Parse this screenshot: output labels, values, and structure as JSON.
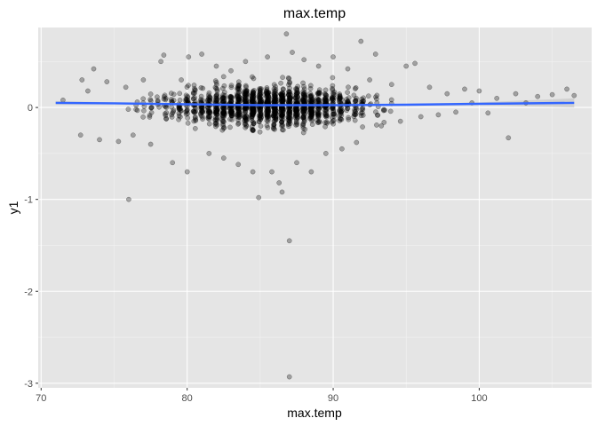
{
  "chart_data": {
    "type": "scatter",
    "title": "max.temp",
    "xlabel": "max.temp",
    "ylabel": "y1",
    "xlim": [
      69.8,
      107.7
    ],
    "ylim": [
      -3.05,
      0.87
    ],
    "x_ticks": [
      70,
      80,
      90,
      100
    ],
    "y_ticks": [
      -3,
      -2,
      -1,
      0
    ],
    "x_tick_labels": [
      "70",
      "80",
      "90",
      "100"
    ],
    "y_tick_labels": [
      "-3",
      "-2",
      "-1",
      "0"
    ],
    "grid": true,
    "legend": "none",
    "colors": {
      "panel": "#e5e5e5",
      "grid_major": "#ffffff",
      "grid_minor": "#f2f2f2",
      "points": "#000000",
      "smooth_line": "#3366ff",
      "confidence_band": "#bfbfbf"
    },
    "trend_line": {
      "x": [
        71,
        75,
        80,
        85,
        90,
        95,
        100,
        106.5
      ],
      "y": [
        0.05,
        0.045,
        0.035,
        0.025,
        0.025,
        0.03,
        0.04,
        0.05
      ],
      "se_lower": [
        0.03,
        0.035,
        0.03,
        0.02,
        0.02,
        0.02,
        0.025,
        0.0
      ],
      "se_upper": [
        0.07,
        0.055,
        0.04,
        0.03,
        0.03,
        0.04,
        0.055,
        0.1
      ]
    },
    "points": [
      {
        "x": 71.5,
        "y": 0.08
      },
      {
        "x": 72.8,
        "y": 0.3
      },
      {
        "x": 72.7,
        "y": -0.3
      },
      {
        "x": 73.2,
        "y": 0.18
      },
      {
        "x": 73.6,
        "y": 0.42
      },
      {
        "x": 74.0,
        "y": -0.35
      },
      {
        "x": 74.5,
        "y": 0.28
      },
      {
        "x": 75.3,
        "y": -0.37
      },
      {
        "x": 75.8,
        "y": 0.22
      },
      {
        "x": 76.0,
        "y": -1.0
      },
      {
        "x": 76.3,
        "y": -0.3
      },
      {
        "x": 77.0,
        "y": 0.3
      },
      {
        "x": 77.5,
        "y": -0.4
      },
      {
        "x": 78.2,
        "y": 0.5
      },
      {
        "x": 78.4,
        "y": 0.57
      },
      {
        "x": 79.0,
        "y": -0.6
      },
      {
        "x": 79.6,
        "y": 0.3
      },
      {
        "x": 80.0,
        "y": -0.7
      },
      {
        "x": 80.1,
        "y": 0.55
      },
      {
        "x": 81.0,
        "y": 0.58
      },
      {
        "x": 81.5,
        "y": -0.5
      },
      {
        "x": 82.0,
        "y": 0.45
      },
      {
        "x": 82.5,
        "y": -0.55
      },
      {
        "x": 83.0,
        "y": 0.4
      },
      {
        "x": 83.5,
        "y": -0.62
      },
      {
        "x": 84.0,
        "y": 0.5
      },
      {
        "x": 84.5,
        "y": -0.7
      },
      {
        "x": 84.9,
        "y": -0.98
      },
      {
        "x": 85.5,
        "y": 0.55
      },
      {
        "x": 85.8,
        "y": -0.7
      },
      {
        "x": 86.3,
        "y": -0.82
      },
      {
        "x": 86.5,
        "y": -0.92
      },
      {
        "x": 86.8,
        "y": 0.8
      },
      {
        "x": 87.0,
        "y": -1.45
      },
      {
        "x": 87.0,
        "y": -2.93
      },
      {
        "x": 87.2,
        "y": 0.6
      },
      {
        "x": 87.5,
        "y": -0.6
      },
      {
        "x": 88.0,
        "y": 0.52
      },
      {
        "x": 88.5,
        "y": -0.7
      },
      {
        "x": 89.0,
        "y": 0.45
      },
      {
        "x": 89.5,
        "y": -0.5
      },
      {
        "x": 90.0,
        "y": 0.55
      },
      {
        "x": 90.6,
        "y": -0.45
      },
      {
        "x": 91.0,
        "y": 0.42
      },
      {
        "x": 91.6,
        "y": -0.38
      },
      {
        "x": 91.9,
        "y": 0.72
      },
      {
        "x": 92.5,
        "y": 0.3
      },
      {
        "x": 92.9,
        "y": 0.58
      },
      {
        "x": 93.3,
        "y": -0.2
      },
      {
        "x": 94.0,
        "y": 0.25
      },
      {
        "x": 94.6,
        "y": -0.15
      },
      {
        "x": 95.0,
        "y": 0.45
      },
      {
        "x": 95.6,
        "y": 0.48
      },
      {
        "x": 96.0,
        "y": -0.1
      },
      {
        "x": 96.6,
        "y": 0.22
      },
      {
        "x": 97.2,
        "y": -0.08
      },
      {
        "x": 97.8,
        "y": 0.15
      },
      {
        "x": 98.4,
        "y": -0.05
      },
      {
        "x": 99.0,
        "y": 0.2
      },
      {
        "x": 99.5,
        "y": 0.05
      },
      {
        "x": 100.0,
        "y": 0.18
      },
      {
        "x": 100.6,
        "y": -0.06
      },
      {
        "x": 101.2,
        "y": 0.1
      },
      {
        "x": 102.0,
        "y": -0.33
      },
      {
        "x": 102.5,
        "y": 0.15
      },
      {
        "x": 103.2,
        "y": 0.05
      },
      {
        "x": 104.0,
        "y": 0.12
      },
      {
        "x": 105.0,
        "y": 0.14
      },
      {
        "x": 106.0,
        "y": 0.2
      },
      {
        "x": 106.5,
        "y": 0.13
      }
    ]
  }
}
